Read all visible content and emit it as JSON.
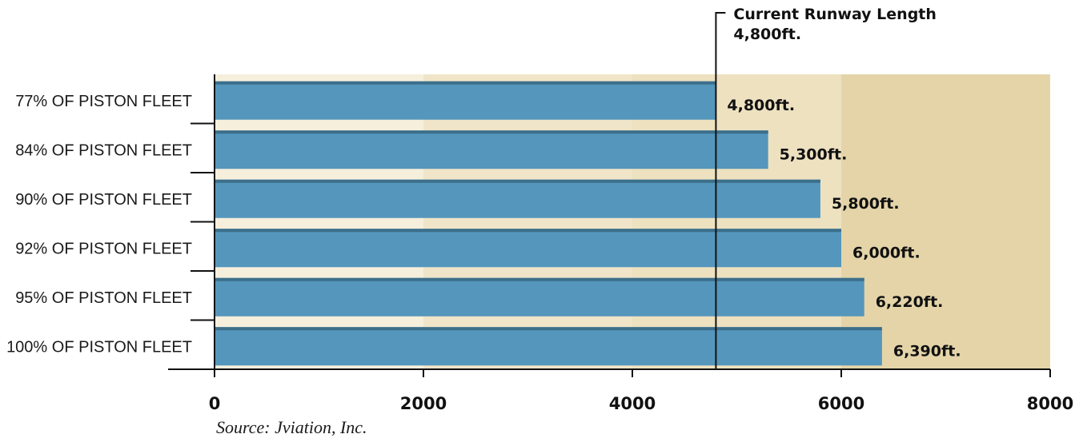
{
  "chart_data": {
    "type": "bar",
    "orientation": "horizontal",
    "categories": [
      "77% OF PISTON FLEET",
      "84% OF PISTON FLEET",
      "90% OF PISTON FLEET",
      "92% OF PISTON FLEET",
      "95% OF PISTON FLEET",
      "100% OF PISTON FLEET"
    ],
    "values": [
      4800,
      5300,
      5800,
      6000,
      6220,
      6390
    ],
    "value_labels": [
      "4,800ft.",
      "5,300ft.",
      "5,800ft.",
      "6,000ft.",
      "6,220ft.",
      "6,390ft."
    ],
    "xlim": [
      0,
      8000
    ],
    "xticks": [
      0,
      2000,
      4000,
      6000,
      8000
    ],
    "xtick_labels": [
      "0",
      "2000",
      "4000",
      "6000",
      "8000"
    ],
    "reference_line": {
      "value": 4800,
      "label_line1": "Current Runway Length",
      "label_line2": "4,800ft."
    },
    "grid": false
  },
  "colors": {
    "bar": "#5596bc",
    "bar_top": "#3c6f8a",
    "band_1": "#f6efdc",
    "band_2": "#f0e5c8",
    "band_3": "#ede1c0",
    "band_4": "#e4d4a8",
    "axis": "#111111"
  },
  "source": "Source: Jviation, Inc."
}
